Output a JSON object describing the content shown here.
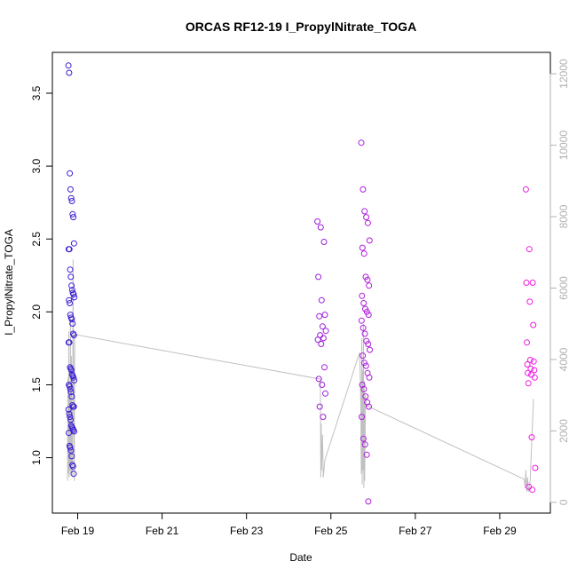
{
  "chart_data": {
    "type": "scatter",
    "title": "ORCAS RF12-19 I_PropylNitrate_TOGA",
    "xlabel": "Date",
    "ylabel": "I_PropylNitrate_TOGA",
    "x_ticks": [
      "Feb 19",
      "Feb 21",
      "Feb 23",
      "Feb 25",
      "Feb 27",
      "Feb 29"
    ],
    "x_tick_days": [
      19,
      21,
      23,
      25,
      27,
      29
    ],
    "xlim_days": [
      18.4,
      30.2
    ],
    "ylim": [
      0.62,
      3.78
    ],
    "y_ticks": [
      1.0,
      1.5,
      2.0,
      2.5,
      3.0,
      3.5
    ],
    "y_tick_labels": [
      "1.0",
      "1.5",
      "2.0",
      "2.5",
      "3.0",
      "3.5"
    ],
    "y2_ticks": [
      0,
      2000,
      4000,
      6000,
      8000,
      10000,
      12000
    ],
    "y2_tick_labels": [
      "0",
      "2000",
      "4000",
      "6000",
      "8000",
      "10000",
      "12000"
    ],
    "y2lim": [
      -300,
      12600
    ],
    "colors": {
      "point_start": "#3a1fd6",
      "point_end": "#f21ce0",
      "line": "#c0c0c0",
      "axis": "#000000",
      "axis_right": "#b0b0b0"
    },
    "flights": [
      {
        "x_range": [
          18.78,
          18.92
        ],
        "values": [
          3.69,
          3.64,
          2.95,
          2.84,
          2.78,
          2.76,
          2.67,
          2.65,
          2.47,
          2.43,
          2.43,
          2.29,
          2.24,
          2.18,
          2.15,
          2.13,
          2.12,
          2.1,
          2.08,
          2.06,
          1.98,
          1.96,
          1.95,
          1.92,
          1.85,
          1.84,
          1.79,
          1.79,
          1.62,
          1.61,
          1.6,
          1.57,
          1.56,
          1.55,
          1.53,
          1.5,
          1.49,
          1.47,
          1.45,
          1.42,
          1.36,
          1.35,
          1.35,
          1.33,
          1.3,
          1.28,
          1.26,
          1.22,
          1.21,
          1.2,
          1.19,
          1.18,
          1.17,
          1.08,
          1.07,
          1.05,
          1.01,
          0.95,
          0.94,
          0.89
        ]
      },
      {
        "x_range": [
          24.68,
          24.88
        ],
        "values": [
          2.62,
          2.58,
          2.48,
          2.24,
          2.08,
          1.98,
          1.97,
          1.9,
          1.87,
          1.84,
          1.82,
          1.81,
          1.78,
          1.62,
          1.54,
          1.5,
          1.44,
          1.35,
          1.28
        ]
      },
      {
        "x_range": [
          25.72,
          25.92
        ],
        "values": [
          3.16,
          2.84,
          2.69,
          2.65,
          2.61,
          2.49,
          2.44,
          2.4,
          2.24,
          2.22,
          2.18,
          2.11,
          2.06,
          2.02,
          2.0,
          1.98,
          1.94,
          1.89,
          1.85,
          1.8,
          1.78,
          1.74,
          1.7,
          1.65,
          1.63,
          1.58,
          1.55,
          1.5,
          1.47,
          1.42,
          1.38,
          1.35,
          1.28,
          1.13,
          1.09,
          1.02,
          0.7
        ]
      },
      {
        "x_range": [
          29.62,
          29.84
        ],
        "values": [
          2.84,
          2.43,
          2.2,
          2.2,
          2.07,
          1.91,
          1.79,
          1.67,
          1.66,
          1.64,
          1.61,
          1.6,
          1.58,
          1.57,
          1.55,
          1.51,
          1.14,
          0.93,
          0.8,
          0.78
        ]
      }
    ],
    "altitude_line": [
      [
        18.76,
        600
      ],
      [
        18.77,
        3500
      ],
      [
        18.78,
        800
      ],
      [
        18.79,
        4800
      ],
      [
        18.8,
        700
      ],
      [
        18.81,
        3000
      ],
      [
        18.82,
        900
      ],
      [
        18.83,
        5200
      ],
      [
        18.84,
        750
      ],
      [
        18.85,
        4100
      ],
      [
        18.86,
        850
      ],
      [
        18.87,
        2800
      ],
      [
        18.88,
        700
      ],
      [
        18.89,
        6800
      ],
      [
        18.9,
        4000
      ],
      [
        18.92,
        600
      ],
      [
        18.93,
        4700
      ],
      [
        24.75,
        3450
      ],
      [
        24.76,
        700
      ],
      [
        24.77,
        2200
      ],
      [
        24.78,
        900
      ],
      [
        24.8,
        1900
      ],
      [
        24.82,
        700
      ],
      [
        24.86,
        1200
      ],
      [
        25.68,
        4200
      ],
      [
        25.7,
        3300
      ],
      [
        25.71,
        2600
      ],
      [
        25.72,
        800
      ],
      [
        25.73,
        4600
      ],
      [
        25.74,
        500
      ],
      [
        25.75,
        3700
      ],
      [
        25.76,
        900
      ],
      [
        25.77,
        5000
      ],
      [
        25.78,
        400
      ],
      [
        25.79,
        3400
      ],
      [
        25.8,
        600
      ],
      [
        25.82,
        3000
      ],
      [
        25.84,
        2700
      ],
      [
        25.86,
        2700
      ],
      [
        29.58,
        650
      ],
      [
        29.6,
        400
      ],
      [
        29.62,
        900
      ],
      [
        29.64,
        300
      ],
      [
        29.66,
        700
      ],
      [
        29.68,
        300
      ],
      [
        29.72,
        600
      ],
      [
        29.8,
        2900
      ]
    ]
  }
}
